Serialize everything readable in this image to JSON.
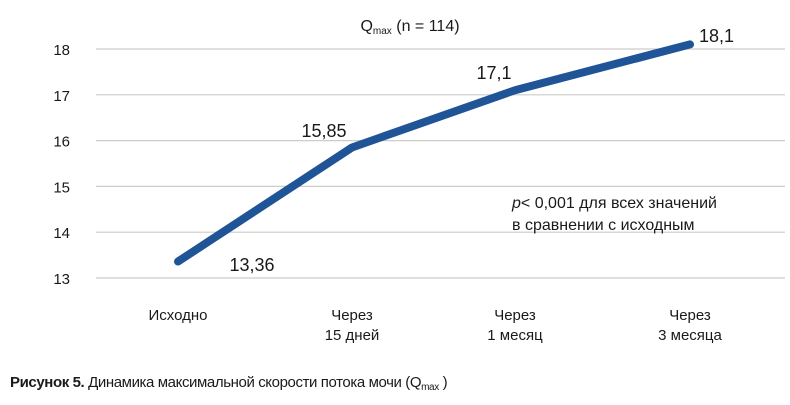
{
  "chart_data": {
    "type": "line",
    "title": "Qmax (n = 114)",
    "title_main": "Q",
    "title_sub": "max",
    "title_rest": " (n = 114)",
    "categories": [
      "Исходно",
      "Через 15 дней",
      "Через 1 месяц",
      "Через 3 месяца"
    ],
    "category_lines": [
      [
        "Исходно"
      ],
      [
        "Через",
        "15 дней"
      ],
      [
        "Через",
        "1 месяц"
      ],
      [
        "Через",
        "3 месяца"
      ]
    ],
    "series": [
      {
        "name": "Qmax",
        "values": [
          13.36,
          15.85,
          17.1,
          18.1
        ],
        "labels": [
          "13,36",
          "15,85",
          "17,1",
          "18,1"
        ],
        "color": "#1f5497"
      }
    ],
    "xlabel": "",
    "ylabel": "",
    "ylim": [
      13,
      18
    ],
    "yticks": [
      13,
      14,
      15,
      16,
      17,
      18
    ],
    "grid": true,
    "gridline_color": "#cccccc",
    "legend": "none",
    "annotation": {
      "lines": [
        "p< 0,001 для всех значений",
        "в сравнении с исходным"
      ],
      "italic_prefix": "p",
      "line1_rest": "< 0,001 для всех значений",
      "line2": "в сравнении с исходным"
    }
  },
  "caption": {
    "label": "Рисунок 5.",
    "text": " Динамика максимальной скорости потока мочи (Q",
    "sub": "max",
    "end": " )"
  }
}
